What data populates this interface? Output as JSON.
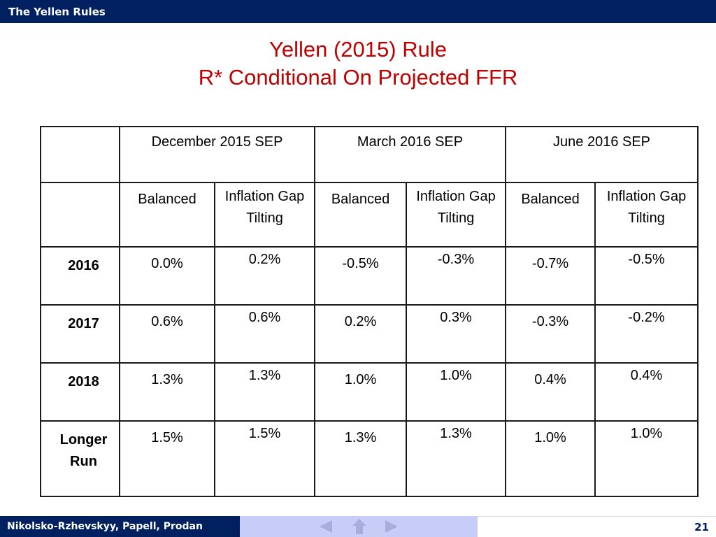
{
  "header": {
    "section_title": "The Yellen Rules"
  },
  "slide": {
    "title_line1": "Yellen (2015) Rule",
    "title_line2": "R* Conditional On Projected FFR"
  },
  "table": {
    "column_groups": [
      "December 2015 SEP",
      "March 2016 SEP",
      "June 2016 SEP"
    ],
    "sub_headers": {
      "balanced": "Balanced",
      "tilting_line1": "Inflation Gap",
      "tilting_line2": "Tilting"
    },
    "rows": [
      {
        "label": "2016",
        "values": [
          "0.0%",
          "0.2%",
          "-0.5%",
          "-0.3%",
          "-0.7%",
          "-0.5%"
        ]
      },
      {
        "label": "2017",
        "values": [
          "0.6%",
          "0.6%",
          "0.2%",
          "0.3%",
          "-0.3%",
          "-0.2%"
        ]
      },
      {
        "label": "2018",
        "values": [
          "1.3%",
          "1.3%",
          "1.0%",
          "1.0%",
          "0.4%",
          "0.4%"
        ]
      },
      {
        "label_line1": "Longer",
        "label_line2": "Run",
        "values": [
          "1.5%",
          "1.5%",
          "1.3%",
          "1.3%",
          "1.0%",
          "1.0%"
        ]
      }
    ]
  },
  "footer": {
    "authors": "Nikolsko-Rzhevskyy, Papell, Prodan",
    "page_number": "21",
    "nav_icons": [
      "prev-arrow-icon",
      "home-icon",
      "next-arrow-icon"
    ]
  },
  "colors": {
    "brand_navy": "#002060",
    "title_red": "#c00000",
    "nav_bar": "#c8cdf8"
  }
}
